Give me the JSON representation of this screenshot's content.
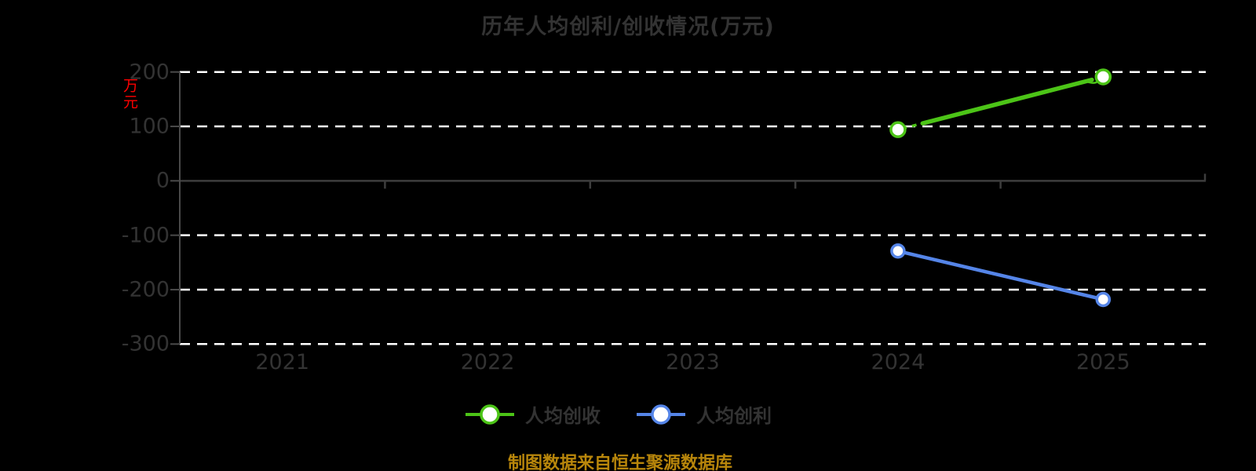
{
  "title": "历年人均创利/创收情况(万元)",
  "footer": {
    "text": "制图数据来自恒生聚源数据库"
  },
  "y_axis": {
    "unit_label": "万元"
  },
  "legend": {
    "items": [
      "人均创收",
      "人均创利"
    ]
  },
  "colors": {
    "background": "#000000",
    "title_text": "#333333",
    "tick_text": "#333333",
    "grid_line": "#ffffff",
    "zero_line": "#3d3d3d",
    "axis_line": "#4a4a4a",
    "unit_label": "#ff0000",
    "footer_text": "#b8860b",
    "revenue_series": "#4cc417",
    "profit_series": "#5585e8",
    "marker_fill": "#ffffff"
  },
  "chart_data": {
    "type": "line",
    "title": "历年人均创利/创收情况(万元)",
    "ylabel": "万元",
    "xlabel": "",
    "categories": [
      "2021",
      "2022",
      "2023",
      "2024",
      "2025"
    ],
    "yticks": [
      200,
      100,
      0,
      -100,
      -200,
      -300
    ],
    "ylim": [
      -300,
      200
    ],
    "grid": "horizontal-dashed",
    "legend_position": "bottom-center",
    "series": [
      {
        "name": "人均创收",
        "color": "#4cc417",
        "x": [
          "2024",
          "2025"
        ],
        "values": [
          94,
          191
        ]
      },
      {
        "name": "人均创利",
        "color": "#5585e8",
        "x": [
          "2024",
          "2025"
        ],
        "values": [
          -129,
          -218
        ]
      }
    ]
  }
}
